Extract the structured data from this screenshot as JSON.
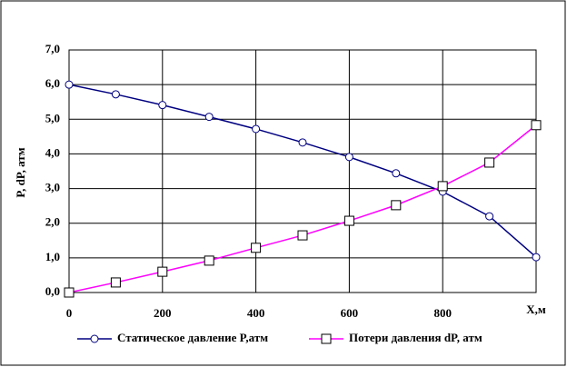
{
  "chart_data": {
    "type": "line",
    "ylabel": "P, dP, атм",
    "xlabel": "X,м",
    "x": [
      0,
      100,
      200,
      300,
      400,
      500,
      600,
      700,
      800,
      900,
      1000
    ],
    "series": [
      {
        "name": "Статическое давление P,атм",
        "color": "#000080",
        "marker": "circle",
        "values": [
          6.0,
          5.72,
          5.41,
          5.07,
          4.72,
          4.33,
          3.91,
          3.44,
          2.91,
          2.2,
          1.02
        ]
      },
      {
        "name": "Потери давления dP, атм",
        "color": "#ff00ff",
        "marker": "square",
        "values": [
          0,
          0.29,
          0.6,
          0.92,
          1.29,
          1.65,
          2.07,
          2.52,
          3.07,
          3.75,
          4.83
        ]
      }
    ],
    "xlim": [
      0,
      1000
    ],
    "xticks": [
      0,
      200,
      400,
      600,
      800
    ],
    "ylim": [
      0,
      7
    ],
    "yticks": [
      {
        "value": 0,
        "label": "0,0"
      },
      {
        "value": 1,
        "label": "1,0"
      },
      {
        "value": 2,
        "label": "2,0"
      },
      {
        "value": 3,
        "label": "3,0"
      },
      {
        "value": 4,
        "label": "4,0"
      },
      {
        "value": 5,
        "label": "5,0"
      },
      {
        "value": 6,
        "label": "6,0"
      },
      {
        "value": 7,
        "label": "7,0"
      }
    ],
    "grid": true,
    "legend": "bottom"
  }
}
